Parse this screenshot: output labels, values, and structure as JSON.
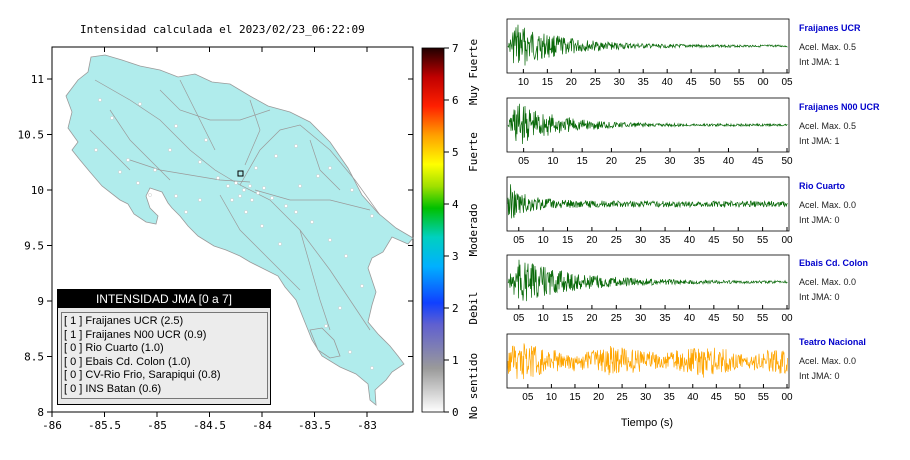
{
  "map": {
    "title": "Intensidad calculada el 2023/02/23_06:22:09",
    "x_ticks": [
      "-86",
      "-85.5",
      "-85",
      "-84.5",
      "-84",
      "-83.5",
      "-83"
    ],
    "y_ticks": [
      "11",
      "10.5",
      "10",
      "9.5",
      "9",
      "8.5",
      "8"
    ],
    "land_color": "#b0ecec",
    "sea_color": "#ffffff"
  },
  "intensity_scale": {
    "ticks": [
      "0",
      "1",
      "2",
      "3",
      "4",
      "5",
      "6",
      "7"
    ],
    "labels": [
      "No sentido",
      "Debil",
      "Moderado",
      "Fuerte",
      "Muy Fuerte"
    ]
  },
  "legend": {
    "title": "INTENSIDAD JMA [0 a 7]",
    "items": [
      "[ 1 ]  Fraijanes UCR (2.5)",
      "[ 1 ]  Fraijanes N00 UCR (0.9)",
      "[ 0 ]  Rio Cuarto (1.0)",
      "[ 0 ]  Ebais Cd. Colon (1.0)",
      "[ 0 ]  CV-Rio Frio, Sarapiqui (0.8)",
      "[ 0 ]  INS Batan (0.6)"
    ]
  },
  "stations": [
    {
      "name": "Fraijanes UCR",
      "acel": "Acel. Max. 0.5",
      "jma": "Int JMA: 1",
      "color": "#0a6a0a",
      "ticks": [
        "10",
        "15",
        "20",
        "25",
        "30",
        "35",
        "40",
        "45",
        "50",
        "55",
        "00",
        "05"
      ],
      "tick_offset": 0.6,
      "decay": 0.75
    },
    {
      "name": "Fraijanes N00 UCR",
      "acel": "Acel. Max. 0.5",
      "jma": "Int JMA: 1",
      "color": "#0a6a0a",
      "ticks": [
        "05",
        "10",
        "15",
        "20",
        "25",
        "30",
        "35",
        "40",
        "45",
        "50"
      ],
      "tick_offset": 0.5,
      "decay": 0.8
    },
    {
      "name": "Rio Cuarto",
      "acel": "Acel. Max. 0.0",
      "jma": "Int JMA: 0",
      "color": "#0a6a0a",
      "ticks": [
        "05",
        "10",
        "15",
        "20",
        "25",
        "30",
        "35",
        "40",
        "45",
        "50",
        "55",
        "00"
      ],
      "tick_offset": 0.4,
      "decay": 0.15
    },
    {
      "name": "Ebais Cd. Colon",
      "acel": "Acel. Max. 0.0",
      "jma": "Int JMA: 0",
      "color": "#0a6a0a",
      "ticks": [
        "05",
        "10",
        "15",
        "20",
        "25",
        "30",
        "35",
        "40",
        "45",
        "50",
        "55",
        "00"
      ],
      "tick_offset": 0.4,
      "decay": 0.6
    },
    {
      "name": "Teatro Nacional",
      "acel": "Acel. Max. 0.0",
      "jma": "Int JMA: 0",
      "color": "#ffa500",
      "ticks": [
        "05",
        "10",
        "15",
        "20",
        "25",
        "30",
        "35",
        "40",
        "45",
        "50",
        "55",
        "00"
      ],
      "tick_offset": 0.8,
      "decay": 0.05
    }
  ],
  "waveform_xlabel": "Tiempo (s)",
  "chart_data": [
    {
      "type": "heatmap",
      "title": "Intensidad calculada el 2023/02/23_06:22:09",
      "xlim": [
        -86,
        -82.6
      ],
      "ylim": [
        8,
        11.3
      ],
      "x_ticks": [
        -86,
        -85.5,
        -85,
        -84.5,
        -84,
        -83.5,
        -83
      ],
      "y_ticks": [
        8,
        8.5,
        9,
        9.5,
        10,
        10.5,
        11
      ],
      "colorbar": {
        "range": [
          0,
          7
        ],
        "labels": [
          "No sentido",
          "Debil",
          "Moderado",
          "Fuerte",
          "Muy Fuerte"
        ]
      }
    },
    {
      "type": "line",
      "series": [
        {
          "name": "Fraijanes UCR"
        },
        {
          "name": "Fraijanes N00 UCR"
        },
        {
          "name": "Rio Cuarto"
        },
        {
          "name": "Ebais Cd. Colon"
        },
        {
          "name": "Teatro Nacional"
        }
      ],
      "xlabel": "Tiempo (s)"
    }
  ]
}
